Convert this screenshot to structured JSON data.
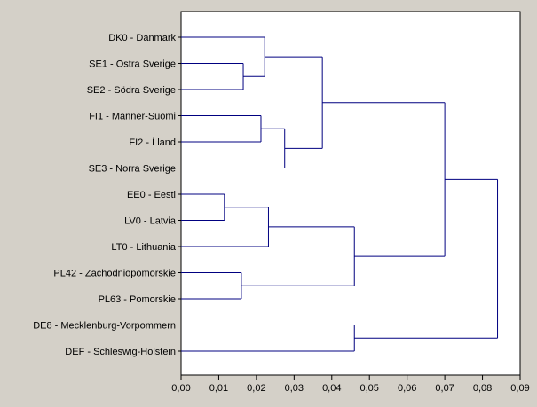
{
  "chart_data": {
    "type": "dendrogram",
    "orientation": "horizontal",
    "leaves": [
      "DK0 - Danmark",
      "SE1 - Östra Sverige",
      "SE2 - Södra Sverige",
      "FI1 - Manner-Suomi",
      "FI2 - Ĺland",
      "SE3 - Norra Sverige",
      "EE0 - Eesti",
      "LV0 - Latvia",
      "LT0 - Lithuania",
      "PL42 - Zachodniopomorskie",
      "PL63 - Pomorskie",
      "DE8 - Mecklenburg-Vorpommern",
      "DEF - Schleswig-Holstein"
    ],
    "merges": [
      {
        "id": "m1",
        "children": [
          "L1",
          "L2"
        ],
        "height": 0.0165
      },
      {
        "id": "m2",
        "children": [
          "L0",
          "m1"
        ],
        "height": 0.0222
      },
      {
        "id": "m3",
        "children": [
          "L3",
          "L4"
        ],
        "height": 0.0212
      },
      {
        "id": "m4",
        "children": [
          "m3",
          "L5"
        ],
        "height": 0.0275
      },
      {
        "id": "m5",
        "children": [
          "m2",
          "m4"
        ],
        "height": 0.0375
      },
      {
        "id": "m6",
        "children": [
          "L6",
          "L7"
        ],
        "height": 0.0115
      },
      {
        "id": "m7",
        "children": [
          "m6",
          "L8"
        ],
        "height": 0.0232
      },
      {
        "id": "m8",
        "children": [
          "L9",
          "L10"
        ],
        "height": 0.016
      },
      {
        "id": "m9",
        "children": [
          "m7",
          "m8"
        ],
        "height": 0.046
      },
      {
        "id": "m10",
        "children": [
          "L11",
          "L12"
        ],
        "height": 0.046
      },
      {
        "id": "m11",
        "children": [
          "m5",
          "m9"
        ],
        "height": 0.07
      },
      {
        "id": "m12",
        "children": [
          "m11",
          "m10"
        ],
        "height": 0.084
      }
    ],
    "xlim": [
      0,
      0.09
    ],
    "xticks": [
      "0,00",
      "0,01",
      "0,02",
      "0,03",
      "0,04",
      "0,05",
      "0,06",
      "0,07",
      "0,08",
      "0,09"
    ],
    "grid": false,
    "colors": {
      "link": "#000080",
      "frame": "#000000",
      "plot_bg": "#ffffff",
      "page_bg": "#d4d0c8"
    }
  }
}
